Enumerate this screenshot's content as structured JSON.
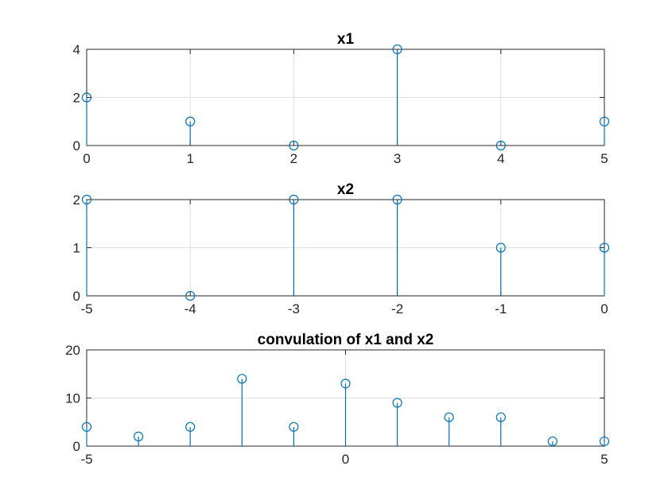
{
  "chart_data": [
    {
      "type": "stem",
      "title": "x1",
      "x": [
        0,
        1,
        2,
        3,
        4,
        5
      ],
      "y": [
        2,
        1,
        0,
        4,
        0,
        1
      ],
      "xlim": [
        0,
        5
      ],
      "ylim": [
        0,
        4
      ],
      "xticks": [
        "0",
        "1",
        "2",
        "3",
        "4",
        "5"
      ],
      "yticks": [
        "0",
        "2",
        "4"
      ],
      "grid": true,
      "color": "#0072bd"
    },
    {
      "type": "stem",
      "title": "x2",
      "x": [
        -5,
        -4,
        -3,
        -2,
        -1,
        0
      ],
      "y": [
        2,
        0,
        2,
        2,
        1,
        1
      ],
      "xlim": [
        -5,
        0
      ],
      "ylim": [
        0,
        2
      ],
      "xticks": [
        "-5",
        "-4",
        "-3",
        "-2",
        "-1",
        "0"
      ],
      "yticks": [
        "0",
        "1",
        "2"
      ],
      "grid": true,
      "color": "#0072bd"
    },
    {
      "type": "stem",
      "title": "convulation of x1 and x2",
      "x": [
        -5,
        -4,
        -3,
        -2,
        -1,
        0,
        1,
        2,
        3,
        4,
        5
      ],
      "y": [
        4,
        2,
        4,
        14,
        4,
        13,
        9,
        6,
        6,
        1,
        1
      ],
      "xlim": [
        -5,
        5
      ],
      "ylim": [
        0,
        20
      ],
      "xticks": [
        "-5",
        "0",
        "5"
      ],
      "yticks": [
        "0",
        "10",
        "20"
      ],
      "grid": true,
      "color": "#0072bd"
    }
  ]
}
